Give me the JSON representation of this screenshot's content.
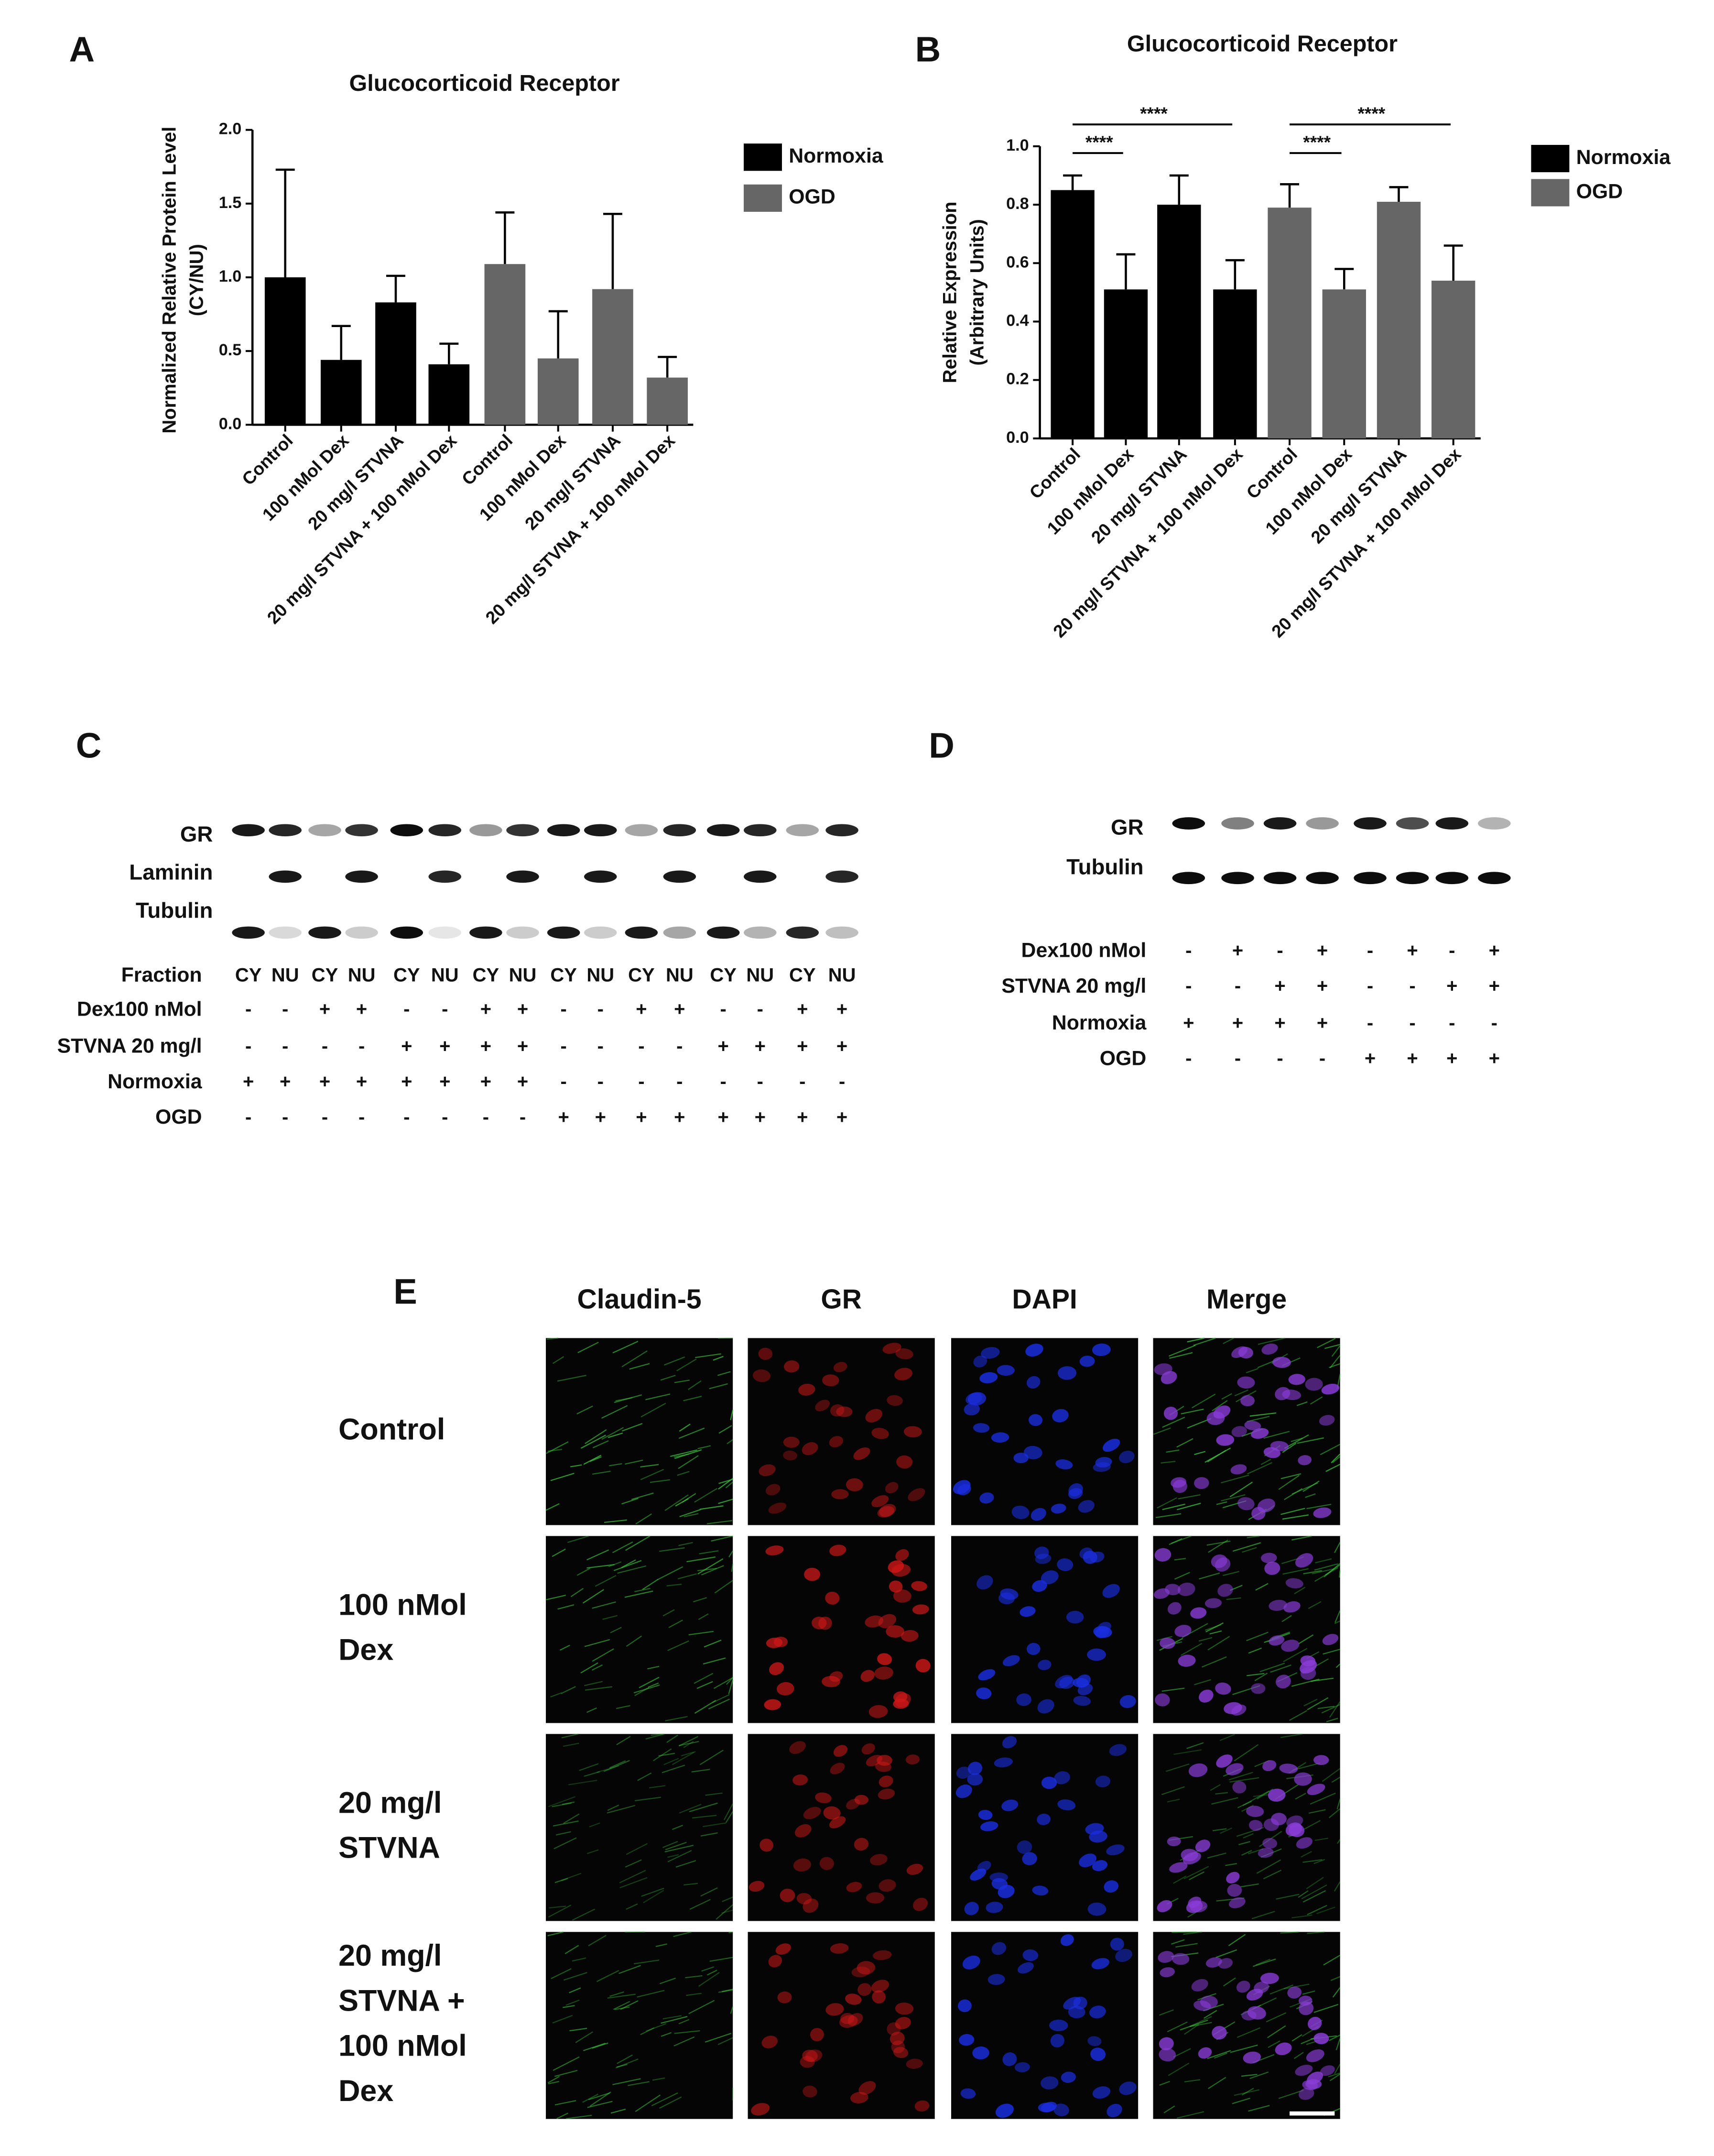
{
  "chart_data": [
    {
      "type": "bar",
      "panel": "A",
      "title": "Glucocorticoid Receptor",
      "y_label": [
        "Normalized Relative Protein Level",
        "(CY/NU)"
      ],
      "categories": [
        "Control",
        "100 nMol Dex",
        "20 mg/l STVNA",
        "20 mg/l STVNA + 100 nMol Dex",
        "Control",
        "100 nMol Dex",
        "20 mg/l STVNA",
        "20 mg/l STVNA + 100 nMol Dex"
      ],
      "series": [
        {
          "name": "Normoxia",
          "color": "#000000",
          "values": [
            1.0,
            0.44,
            0.83,
            0.41,
            null,
            null,
            null,
            null
          ],
          "errors": [
            0.73,
            0.23,
            0.18,
            0.14,
            null,
            null,
            null,
            null
          ]
        },
        {
          "name": "OGD",
          "color": "#666666",
          "values": [
            null,
            null,
            null,
            null,
            1.09,
            0.45,
            0.92,
            0.32
          ],
          "errors": [
            null,
            null,
            null,
            null,
            0.35,
            0.32,
            0.51,
            0.14
          ]
        }
      ],
      "ylim": [
        0,
        2.0
      ],
      "yticks": [
        {
          "value": 0,
          "label": "0.0"
        },
        {
          "value": 0.5,
          "label": "0.5"
        },
        {
          "value": 1.0,
          "label": "1.0"
        },
        {
          "value": 1.5,
          "label": "1.5"
        },
        {
          "value": 2.0,
          "label": "2.0"
        }
      ],
      "legend": "right"
    },
    {
      "type": "bar",
      "panel": "B",
      "title": "Glucocorticoid Receptor",
      "y_label": [
        "Relative Expression",
        "(Arbitrary Units)"
      ],
      "categories": [
        "Control",
        "100 nMol Dex",
        "20 mg/l STVNA",
        "20 mg/l STVNA + 100 nMol Dex",
        "Control",
        "100 nMol Dex",
        "20 mg/l STVNA",
        "20 mg/l STVNA + 100 nMol Dex"
      ],
      "series": [
        {
          "name": "Normoxia",
          "color": "#000000",
          "values": [
            0.85,
            0.51,
            0.8,
            0.51,
            null,
            null,
            null,
            null
          ],
          "errors": [
            0.05,
            0.12,
            0.1,
            0.1,
            null,
            null,
            null,
            null
          ]
        },
        {
          "name": "OGD",
          "color": "#666666",
          "values": [
            null,
            null,
            null,
            null,
            0.79,
            0.51,
            0.81,
            0.54
          ],
          "errors": [
            null,
            null,
            null,
            null,
            0.08,
            0.07,
            0.05,
            0.12
          ]
        }
      ],
      "ylim": [
        0,
        1.0
      ],
      "yticks": [
        {
          "value": 0,
          "label": "0.0"
        },
        {
          "value": 0.2,
          "label": "0.2"
        },
        {
          "value": 0.4,
          "label": "0.4"
        },
        {
          "value": 0.6,
          "label": "0.6"
        },
        {
          "value": 0.8,
          "label": "0.8"
        },
        {
          "value": 1.0,
          "label": "1.0"
        }
      ],
      "annotations": [
        "****",
        "****",
        "****",
        "****"
      ],
      "legend": "right"
    }
  ],
  "blot_c": {
    "panel": "C",
    "bands": [
      "GR",
      "Laminin",
      "Tubulin"
    ],
    "rows": [
      {
        "label": "Fraction",
        "values": [
          "CY",
          "NU",
          "CY",
          "NU",
          "CY",
          "NU",
          "CY",
          "NU",
          "CY",
          "NU",
          "CY",
          "NU",
          "CY",
          "NU",
          "CY",
          "NU"
        ]
      },
      {
        "label": "Dex100 nMol",
        "values": [
          "-",
          "-",
          "+",
          "+",
          "-",
          "-",
          "+",
          "+",
          "-",
          "-",
          "+",
          "+",
          "-",
          "-",
          "+",
          "+"
        ]
      },
      {
        "label": "STVNA 20 mg/l",
        "values": [
          "-",
          "-",
          "-",
          "-",
          "+",
          "+",
          "+",
          "+",
          "-",
          "-",
          "-",
          "-",
          "+",
          "+",
          "+",
          "+"
        ]
      },
      {
        "label": "Normoxia",
        "values": [
          "+",
          "+",
          "+",
          "+",
          "+",
          "+",
          "+",
          "+",
          "-",
          "-",
          "-",
          "-",
          "-",
          "-",
          "-",
          "-"
        ]
      },
      {
        "label": "OGD",
        "values": [
          "-",
          "-",
          "-",
          "-",
          "-",
          "-",
          "-",
          "-",
          "+",
          "+",
          "+",
          "+",
          "+",
          "+",
          "+",
          "+"
        ]
      }
    ]
  },
  "blot_d": {
    "panel": "D",
    "bands": [
      "GR",
      "Tubulin"
    ],
    "rows": [
      {
        "label": "Dex100 nMol",
        "values": [
          "-",
          "+",
          "-",
          "+",
          "-",
          "+",
          "-",
          "+"
        ]
      },
      {
        "label": "STVNA 20 mg/l",
        "values": [
          "-",
          "-",
          "+",
          "+",
          "-",
          "-",
          "+",
          "+"
        ]
      },
      {
        "label": "Normoxia",
        "values": [
          "+",
          "+",
          "+",
          "+",
          "-",
          "-",
          "-",
          "-"
        ]
      },
      {
        "label": "OGD",
        "values": [
          "-",
          "-",
          "-",
          "-",
          "+",
          "+",
          "+",
          "+"
        ]
      }
    ]
  },
  "panel_e": {
    "panel": "E",
    "columns": [
      "Claudin-5",
      "GR",
      "DAPI",
      "Merge"
    ],
    "rows": [
      [
        "Control"
      ],
      [
        "100 nMol",
        "Dex"
      ],
      [
        "20 mg/l",
        "STVNA"
      ],
      [
        "20 mg/l",
        "STVNA +",
        "100 nMol",
        "Dex"
      ]
    ]
  }
}
